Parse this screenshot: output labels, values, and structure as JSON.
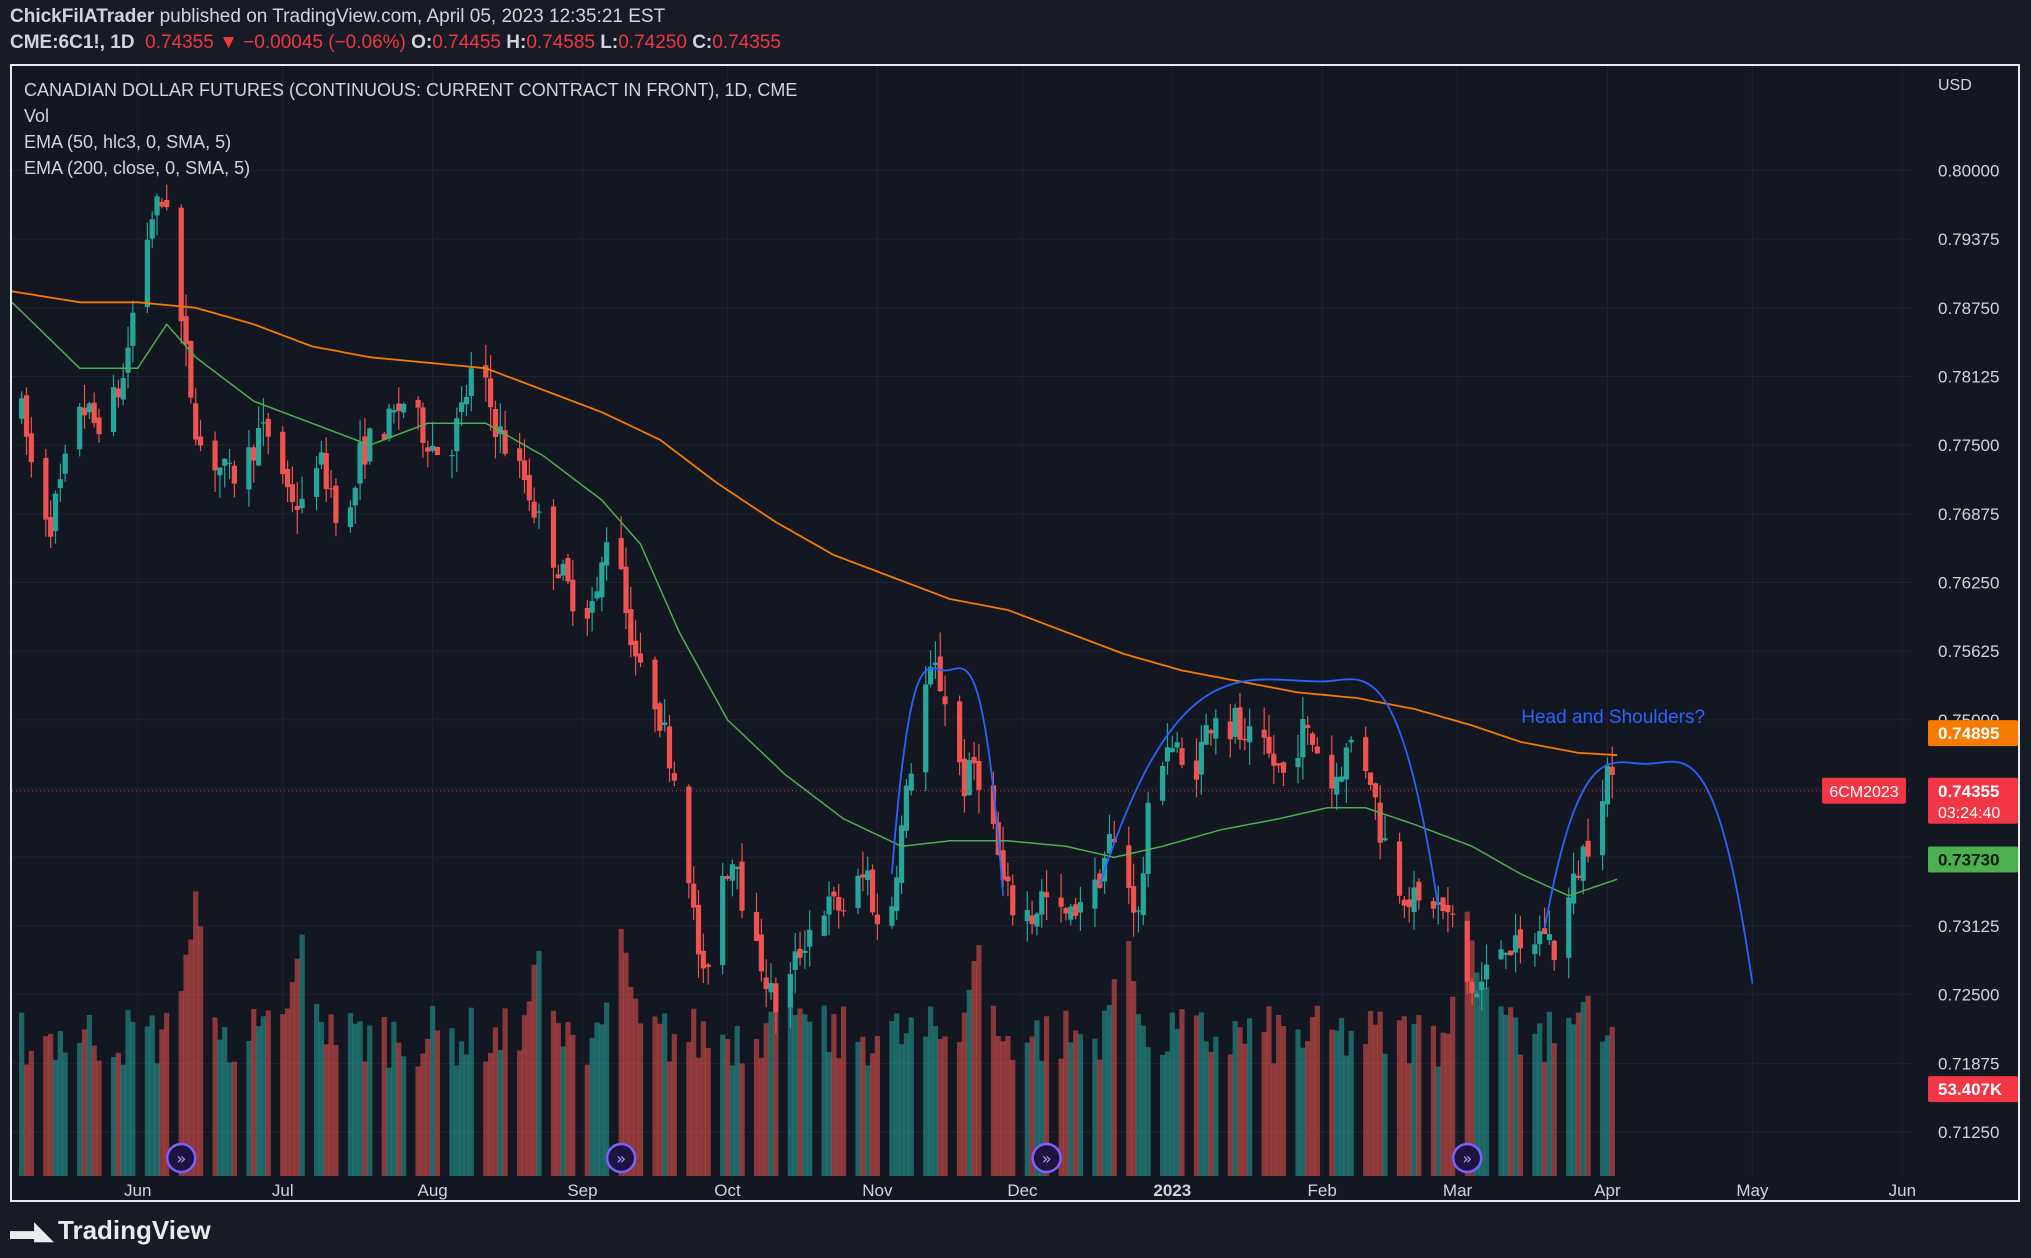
{
  "header": {
    "author": "ChickFilATrader",
    "published": "published on TradingView.com, April 05, 2023 12:35:21 EST",
    "symbol": "CME:6C1!, 1D",
    "last": "0.74355",
    "change_arrow": "▼",
    "change": "−0.00045 (−0.06%)",
    "o_label": "O:",
    "o_value": "0.74455",
    "h_label": "H:",
    "h_value": "0.74585",
    "l_label": "L:",
    "l_value": "0.74250",
    "c_label": "C:",
    "c_value": "0.74355"
  },
  "legend": {
    "title": "CANADIAN DOLLAR FUTURES (CONTINUOUS: CURRENT CONTRACT IN FRONT), 1D, CME",
    "vol": "Vol",
    "ema50": "EMA (50, hlc3, 0, SMA, 5)",
    "ema200": "EMA (200, close, 0, SMA, 5)"
  },
  "brand": "TradingView",
  "colors": {
    "up": "#26a69a",
    "down": "#ef5350",
    "ema50": "#4caf50",
    "ema200": "#f57c00",
    "pattern": "#2962ff",
    "label_price": "#f23645"
  },
  "chart_data": {
    "type": "candlestick",
    "currency": "USD",
    "y_ticks": [
      "0.80000",
      "0.79375",
      "0.78750",
      "0.78125",
      "0.77500",
      "0.76875",
      "0.76250",
      "0.75625",
      "0.75000",
      "0.74375",
      "0.73750",
      "0.73125",
      "0.72500",
      "0.71875",
      "0.71250"
    ],
    "ylim": [
      0.7085,
      0.8095
    ],
    "x_labels": [
      {
        "label": "Jun",
        "day": 12
      },
      {
        "label": "Jul",
        "day": 42
      },
      {
        "label": "Aug",
        "day": 73
      },
      {
        "label": "Sep",
        "day": 104
      },
      {
        "label": "Oct",
        "day": 134
      },
      {
        "label": "Nov",
        "day": 165
      },
      {
        "label": "Dec",
        "day": 195
      },
      {
        "label": "2023",
        "day": 226
      },
      {
        "label": "Feb",
        "day": 257
      },
      {
        "label": "Mar",
        "day": 285
      },
      {
        "label": "Apr",
        "day": 316
      },
      {
        "label": "May",
        "day": 346
      },
      {
        "label": "Jun",
        "day": 377
      }
    ],
    "x_day_range": [
      -14,
      379
    ],
    "price_anchors": [
      [
        -12,
        0.778
      ],
      [
        -9,
        0.771
      ],
      [
        -6,
        0.768
      ],
      [
        -3,
        0.773
      ],
      [
        0,
        0.779
      ],
      [
        3,
        0.777
      ],
      [
        6,
        0.778
      ],
      [
        9,
        0.781
      ],
      [
        12,
        0.79
      ],
      [
        15,
        0.796
      ],
      [
        18,
        0.7975
      ],
      [
        20,
        0.789
      ],
      [
        22,
        0.783
      ],
      [
        24,
        0.777
      ],
      [
        26,
        0.773
      ],
      [
        28,
        0.7735
      ],
      [
        31,
        0.772
      ],
      [
        34,
        0.773
      ],
      [
        37,
        0.776
      ],
      [
        40,
        0.776
      ],
      [
        43,
        0.771
      ],
      [
        46,
        0.769
      ],
      [
        49,
        0.774
      ],
      [
        52,
        0.771
      ],
      [
        55,
        0.766
      ],
      [
        58,
        0.774
      ],
      [
        61,
        0.776
      ],
      [
        64,
        0.777
      ],
      [
        67,
        0.779
      ],
      [
        70,
        0.777
      ],
      [
        73,
        0.775
      ],
      [
        76,
        0.774
      ],
      [
        79,
        0.778
      ],
      [
        82,
        0.783
      ],
      [
        84,
        0.78
      ],
      [
        86,
        0.777
      ],
      [
        89,
        0.774
      ],
      [
        92,
        0.772
      ],
      [
        95,
        0.768
      ],
      [
        98,
        0.765
      ],
      [
        101,
        0.762
      ],
      [
        104,
        0.76
      ],
      [
        107,
        0.761
      ],
      [
        109,
        0.767
      ],
      [
        111,
        0.769
      ],
      [
        113,
        0.76
      ],
      [
        116,
        0.754
      ],
      [
        119,
        0.752
      ],
      [
        122,
        0.747
      ],
      [
        125,
        0.741
      ],
      [
        127,
        0.732
      ],
      [
        129,
        0.726
      ],
      [
        131,
        0.731
      ],
      [
        133,
        0.736
      ],
      [
        136,
        0.738
      ],
      [
        138,
        0.73
      ],
      [
        141,
        0.728
      ],
      [
        143,
        0.725
      ],
      [
        145,
        0.723
      ],
      [
        148,
        0.728
      ],
      [
        151,
        0.731
      ],
      [
        154,
        0.733
      ],
      [
        157,
        0.733
      ],
      [
        159,
        0.733
      ],
      [
        161,
        0.735
      ],
      [
        163,
        0.736
      ],
      [
        165,
        0.731
      ],
      [
        167,
        0.73
      ],
      [
        169,
        0.737
      ],
      [
        171,
        0.743
      ],
      [
        173,
        0.749
      ],
      [
        175,
        0.753
      ],
      [
        177,
        0.7545
      ],
      [
        179,
        0.752
      ],
      [
        181,
        0.748
      ],
      [
        183,
        0.744
      ],
      [
        185,
        0.746
      ],
      [
        187,
        0.744
      ],
      [
        189,
        0.74
      ],
      [
        191,
        0.735
      ],
      [
        193,
        0.733
      ],
      [
        195,
        0.733
      ],
      [
        197,
        0.732
      ],
      [
        199,
        0.734
      ],
      [
        201,
        0.733
      ],
      [
        203,
        0.732
      ],
      [
        205,
        0.732
      ],
      [
        207,
        0.734
      ],
      [
        209,
        0.733
      ],
      [
        211,
        0.736
      ],
      [
        213,
        0.739
      ],
      [
        215,
        0.738
      ],
      [
        217,
        0.735
      ],
      [
        219,
        0.732
      ],
      [
        221,
        0.741
      ],
      [
        223,
        0.746
      ],
      [
        225,
        0.748
      ],
      [
        227,
        0.747
      ],
      [
        229,
        0.744
      ],
      [
        231,
        0.746
      ],
      [
        233,
        0.749
      ],
      [
        235,
        0.751
      ],
      [
        237,
        0.748
      ],
      [
        239,
        0.75
      ],
      [
        241,
        0.747
      ],
      [
        243,
        0.749
      ],
      [
        245,
        0.747
      ],
      [
        247,
        0.746
      ],
      [
        249,
        0.745
      ],
      [
        251,
        0.747
      ],
      [
        253,
        0.749
      ],
      [
        255,
        0.748
      ],
      [
        257,
        0.747
      ],
      [
        259,
        0.744
      ],
      [
        261,
        0.746
      ],
      [
        263,
        0.748
      ],
      [
        265,
        0.747
      ],
      [
        267,
        0.745
      ],
      [
        269,
        0.74
      ],
      [
        271,
        0.738
      ],
      [
        273,
        0.735
      ],
      [
        275,
        0.734
      ],
      [
        277,
        0.733
      ],
      [
        279,
        0.734
      ],
      [
        281,
        0.733
      ],
      [
        283,
        0.732
      ],
      [
        285,
        0.731
      ],
      [
        287,
        0.726
      ],
      [
        289,
        0.725
      ],
      [
        291,
        0.727
      ],
      [
        293,
        0.729
      ],
      [
        295,
        0.73
      ],
      [
        297,
        0.729
      ],
      [
        299,
        0.728
      ],
      [
        301,
        0.73
      ],
      [
        303,
        0.731
      ],
      [
        305,
        0.729
      ],
      [
        307,
        0.732
      ],
      [
        309,
        0.735
      ],
      [
        311,
        0.738
      ],
      [
        313,
        0.74
      ],
      [
        315,
        0.744
      ],
      [
        316,
        0.7455
      ],
      [
        317,
        0.7436
      ]
    ],
    "ema50_anchors": [
      [
        -14,
        0.788
      ],
      [
        0,
        0.782
      ],
      [
        12,
        0.782
      ],
      [
        18,
        0.786
      ],
      [
        24,
        0.783
      ],
      [
        36,
        0.779
      ],
      [
        48,
        0.777
      ],
      [
        60,
        0.775
      ],
      [
        72,
        0.777
      ],
      [
        84,
        0.777
      ],
      [
        96,
        0.774
      ],
      [
        108,
        0.77
      ],
      [
        116,
        0.766
      ],
      [
        124,
        0.758
      ],
      [
        134,
        0.75
      ],
      [
        146,
        0.745
      ],
      [
        158,
        0.741
      ],
      [
        170,
        0.7385
      ],
      [
        180,
        0.739
      ],
      [
        192,
        0.739
      ],
      [
        204,
        0.7385
      ],
      [
        214,
        0.7375
      ],
      [
        224,
        0.7385
      ],
      [
        236,
        0.74
      ],
      [
        248,
        0.741
      ],
      [
        258,
        0.742
      ],
      [
        266,
        0.742
      ],
      [
        276,
        0.7405
      ],
      [
        288,
        0.7385
      ],
      [
        298,
        0.736
      ],
      [
        308,
        0.734
      ],
      [
        318,
        0.7355
      ]
    ],
    "ema200_anchors": [
      [
        -14,
        0.789
      ],
      [
        0,
        0.788
      ],
      [
        12,
        0.788
      ],
      [
        24,
        0.7875
      ],
      [
        36,
        0.786
      ],
      [
        48,
        0.784
      ],
      [
        60,
        0.783
      ],
      [
        72,
        0.7825
      ],
      [
        84,
        0.782
      ],
      [
        96,
        0.78
      ],
      [
        108,
        0.778
      ],
      [
        120,
        0.7755
      ],
      [
        132,
        0.7715
      ],
      [
        144,
        0.768
      ],
      [
        156,
        0.765
      ],
      [
        168,
        0.763
      ],
      [
        180,
        0.761
      ],
      [
        192,
        0.76
      ],
      [
        204,
        0.758
      ],
      [
        216,
        0.756
      ],
      [
        228,
        0.7545
      ],
      [
        240,
        0.7535
      ],
      [
        252,
        0.7525
      ],
      [
        264,
        0.752
      ],
      [
        276,
        0.751
      ],
      [
        288,
        0.7495
      ],
      [
        298,
        0.748
      ],
      [
        310,
        0.747
      ],
      [
        318,
        0.7468
      ]
    ],
    "pattern_arcs": [
      {
        "from": [
          168,
          0.736
        ],
        "peak": [
          179,
          0.7545
        ],
        "to": [
          191,
          0.734
        ]
      },
      {
        "from": [
          211,
          0.735
        ],
        "peak": [
          257,
          0.7535
        ],
        "to": [
          281,
          0.733
        ]
      },
      {
        "from": [
          303,
          0.731
        ],
        "peak": [
          324,
          0.746
        ],
        "to": [
          346,
          0.726
        ]
      }
    ],
    "annotation": {
      "text": "Head and Shoulders?",
      "day": 323,
      "value": 0.751
    },
    "price_labels": [
      {
        "value": "0.74895",
        "y": 0.7488,
        "bg": "#f57c00"
      },
      {
        "value": "0.74355",
        "sub": "03:24:40",
        "y": 0.74355,
        "bg": "#f23645",
        "tag": "6CM2023"
      },
      {
        "value": "0.73730",
        "y": 0.7373,
        "bg": "#4caf50"
      },
      {
        "value": "53.407K",
        "y": 0.7164,
        "bg": "#f23645"
      }
    ],
    "event_marker_days": [
      21,
      112,
      200,
      287
    ],
    "volume_peaks": [
      [
        24,
        0.93
      ],
      [
        46,
        0.8
      ],
      [
        95,
        0.76
      ],
      [
        112,
        0.82
      ],
      [
        145,
        0.72
      ],
      [
        186,
        0.8
      ],
      [
        216,
        0.84
      ],
      [
        287,
        0.88
      ],
      [
        292,
        0.7
      ],
      [
        312,
        0.61
      ]
    ]
  }
}
